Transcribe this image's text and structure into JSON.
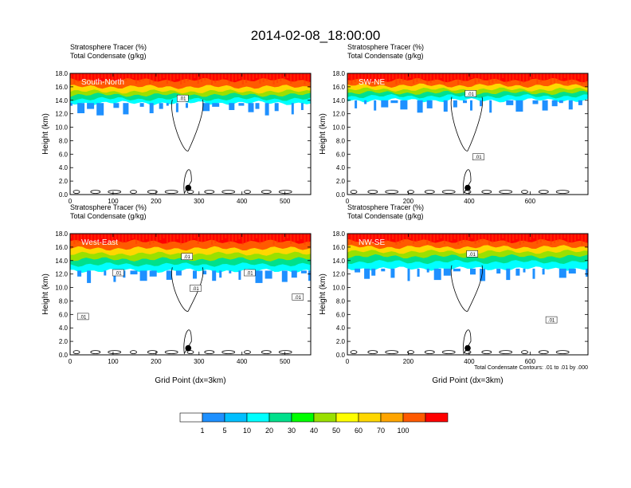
{
  "title": "2014-02-08_18:00:00",
  "subtitle_line1": "Stratosphere Tracer   (%)",
  "subtitle_line2": "Total Condensate   (g/kg)",
  "ylabel": "Height (km)",
  "xlabel": "Grid Point (dx=3km)",
  "contour_note": "Total Condensate Contours: .01 to .01 by .000",
  "contour_label": ".01",
  "colorbar": {
    "labels": [
      "1",
      "5",
      "10",
      "20",
      "30",
      "40",
      "50",
      "60",
      "70",
      "100"
    ],
    "colors": [
      "#ffffff",
      "#1e90ff",
      "#00bfff",
      "#00ffff",
      "#00e08c",
      "#00ff00",
      "#9ae000",
      "#ffff00",
      "#ffd700",
      "#ffa500",
      "#ff5a00",
      "#ff0000"
    ]
  },
  "chart_data": [
    {
      "type": "heatmap",
      "name": "South-North",
      "xlim": [
        0,
        560
      ],
      "xticks": [
        0,
        100,
        200,
        300,
        400,
        500
      ],
      "ylim": [
        0,
        18
      ],
      "yticks": [
        "0.0",
        "2.0",
        "4.0",
        "6.0",
        "8.0",
        "10.0",
        "12.0",
        "14.0",
        "16.0",
        "18.0"
      ],
      "tracer_bands_km": [
        {
          "level": "100",
          "base": 17.0
        },
        {
          "level": "70",
          "base": 16.0
        },
        {
          "level": "50",
          "base": 15.3
        },
        {
          "level": "30",
          "base": 14.8
        },
        {
          "level": "10",
          "base": 14.2
        },
        {
          "level": "5",
          "base": 13.6
        }
      ],
      "marker": {
        "x": 275,
        "y": 1.0
      },
      "contour_labels": [
        {
          "x": 262,
          "y": 14.3
        }
      ]
    },
    {
      "type": "heatmap",
      "name": "SW-NE",
      "xlim": [
        0,
        790
      ],
      "xticks": [
        0,
        200,
        400,
        600
      ],
      "ylim": [
        0,
        18
      ],
      "yticks": [
        "0.0",
        "2.0",
        "4.0",
        "6.0",
        "8.0",
        "10.0",
        "12.0",
        "14.0",
        "16.0",
        "18.0"
      ],
      "tracer_bands_km": [
        {
          "level": "100",
          "base": 17.0
        },
        {
          "level": "70",
          "base": 16.2
        },
        {
          "level": "50",
          "base": 15.6
        },
        {
          "level": "30",
          "base": 15.1
        },
        {
          "level": "10",
          "base": 14.6
        },
        {
          "level": "5",
          "base": 14.0
        }
      ],
      "marker": {
        "x": 395,
        "y": 1.0
      },
      "contour_labels": [
        {
          "x": 405,
          "y": 15.0
        },
        {
          "x": 430,
          "y": 5.6
        }
      ]
    },
    {
      "type": "heatmap",
      "name": "West-East",
      "xlim": [
        0,
        560
      ],
      "xticks": [
        0,
        100,
        200,
        300,
        400,
        500
      ],
      "ylim": [
        0,
        18
      ],
      "yticks": [
        "0.0",
        "2.0",
        "4.0",
        "6.0",
        "8.0",
        "10.0",
        "12.0",
        "14.0",
        "16.0",
        "18.0"
      ],
      "tracer_bands_km": [
        {
          "level": "100",
          "base": 16.8
        },
        {
          "level": "70",
          "base": 15.8
        },
        {
          "level": "50",
          "base": 15.0
        },
        {
          "level": "30",
          "base": 14.2
        },
        {
          "level": "10",
          "base": 13.4
        },
        {
          "level": "5",
          "base": 12.5
        }
      ],
      "marker": {
        "x": 275,
        "y": 1.0
      },
      "contour_labels": [
        {
          "x": 112,
          "y": 12.2
        },
        {
          "x": 272,
          "y": 14.6
        },
        {
          "x": 292,
          "y": 9.9
        },
        {
          "x": 418,
          "y": 12.2
        },
        {
          "x": 530,
          "y": 8.6
        },
        {
          "x": 30,
          "y": 5.7
        }
      ]
    },
    {
      "type": "heatmap",
      "name": "NW-SE",
      "xlim": [
        0,
        790
      ],
      "xticks": [
        0,
        200,
        400,
        600
      ],
      "ylim": [
        0,
        18
      ],
      "yticks": [
        "0.0",
        "2.0",
        "4.0",
        "6.0",
        "8.0",
        "10.0",
        "12.0",
        "14.0",
        "16.0",
        "18.0"
      ],
      "tracer_bands_km": [
        {
          "level": "100",
          "base": 16.9
        },
        {
          "level": "70",
          "base": 16.0
        },
        {
          "level": "50",
          "base": 15.3
        },
        {
          "level": "30",
          "base": 14.6
        },
        {
          "level": "10",
          "base": 13.8
        },
        {
          "level": "5",
          "base": 12.8
        }
      ],
      "marker": {
        "x": 395,
        "y": 1.0
      },
      "contour_labels": [
        {
          "x": 410,
          "y": 15.0
        },
        {
          "x": 670,
          "y": 5.2
        }
      ]
    }
  ]
}
